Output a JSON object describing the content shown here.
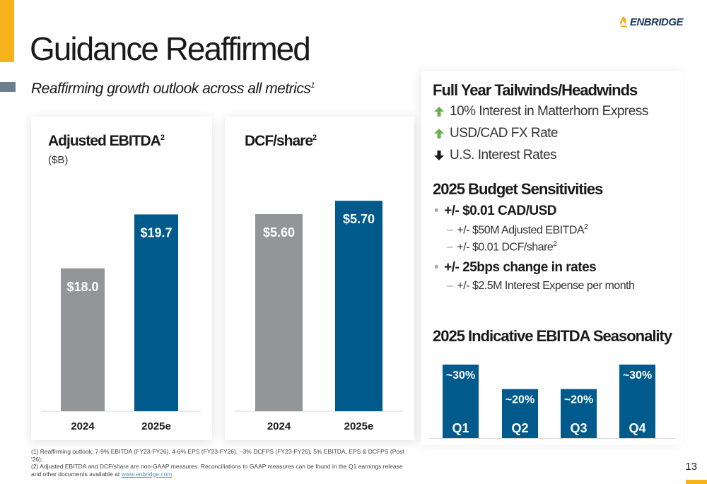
{
  "header": {
    "title": "Guidance Reaffirmed",
    "subtitle": "Reaffirming growth outlook across all metrics",
    "subtitle_note": "1",
    "logo_text": "ENBRIDGE",
    "page_number": "13"
  },
  "colors": {
    "accent": "#f5b21a",
    "bar_2024": "#939598",
    "bar_2025": "#005a8c",
    "up_arrow": "#6ab04c",
    "down_arrow": "#1a1a1a"
  },
  "tailwinds": {
    "title": "Full Year Tailwinds/Headwinds",
    "items": [
      {
        "direction": "up",
        "icon": "up-arrow-icon",
        "label": "10% Interest in Matterhorn Express"
      },
      {
        "direction": "up",
        "icon": "up-arrow-icon",
        "label": "USD/CAD FX Rate"
      },
      {
        "direction": "down",
        "icon": "down-arrow-icon",
        "label": "U.S. Interest Rates"
      }
    ]
  },
  "sensitivities": {
    "title": "2025 Budget Sensitivities",
    "items": [
      {
        "label": "+/- $0.01 CAD/USD",
        "subs": [
          {
            "text": "+/- $50M Adjusted EBITDA",
            "note": "2"
          },
          {
            "text": "+/-  $0.01 DCF/share",
            "note": "2"
          }
        ]
      },
      {
        "label": "+/- 25bps change in rates",
        "subs": [
          {
            "text": "+/- $2.5M Interest Expense per month",
            "note": ""
          }
        ]
      }
    ]
  },
  "footnotes": {
    "line1": "(1) Reaffirming outlook; 7-9% EBITDA (FY23-FY26), 4-6% EPS (FY23-FY26), ~3% DCFPS (FY23-FY26), 5% EBITDA, EPS & DCFPS (Post '26);",
    "line2": "(2) Adjusted EBITDA and DCF/share are non-GAAP measures. Reconciliations to GAAP measures can be found in the Q1 earnings release and other documents available at",
    "link": "www.enbridge.com"
  },
  "chart_data": [
    {
      "type": "bar",
      "title": "Adjusted EBITDA",
      "title_note": "2",
      "unit": "($B)",
      "categories": [
        "2024",
        "2025e"
      ],
      "values": [
        18.0,
        19.7
      ],
      "labels": [
        "$18.0",
        "$19.7"
      ],
      "colors": [
        "#939598",
        "#005a8c"
      ],
      "ylim": [
        13.5,
        20.6
      ]
    },
    {
      "type": "bar",
      "title": "DCF/share",
      "title_note": "2",
      "categories": [
        "2024",
        "2025e"
      ],
      "values": [
        5.6,
        5.7
      ],
      "labels": [
        "$5.60",
        "$5.70"
      ],
      "colors": [
        "#939598",
        "#005a8c"
      ],
      "ylim": [
        4.12,
        5.86
      ]
    },
    {
      "type": "bar",
      "title": "2025 Indicative EBITDA Seasonality",
      "categories": [
        "Q1",
        "Q2",
        "Q3",
        "Q4"
      ],
      "values": [
        30,
        20,
        20,
        30
      ],
      "labels": [
        "~30%",
        "~20%",
        "~20%",
        "~30%"
      ],
      "colors": [
        "#005a8c",
        "#005a8c",
        "#005a8c",
        "#005a8c"
      ],
      "ylim": [
        0,
        30
      ]
    }
  ]
}
